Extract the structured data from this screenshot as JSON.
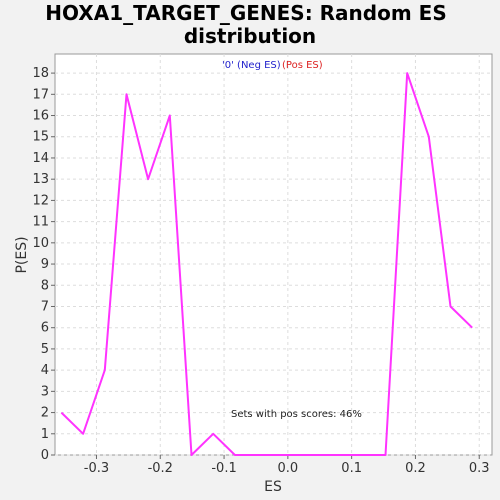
{
  "chart_data": {
    "type": "line",
    "title_line1": "HOXA1_TARGET_GENES: Random ES",
    "title_line2": "distribution",
    "xlabel": "ES",
    "ylabel": "P(ES)",
    "legend": {
      "neg": "'0' (Neg ES)",
      "pos": "(Pos ES)"
    },
    "annotation": "Sets with pos scores: 46%",
    "xlim": [
      -0.365,
      0.32
    ],
    "ylim": [
      0,
      18.9
    ],
    "x_ticks": [
      -0.3,
      -0.2,
      -0.1,
      0.0,
      0.1,
      0.2,
      0.3
    ],
    "x_tick_labels": [
      "-0.3",
      "-0.2",
      "-0.1",
      "0.0",
      "0.1",
      "0.2",
      "0.3"
    ],
    "y_ticks": [
      0,
      1,
      2,
      3,
      4,
      5,
      6,
      7,
      8,
      9,
      10,
      11,
      12,
      13,
      14,
      15,
      16,
      17,
      18
    ],
    "grid": true,
    "series": [
      {
        "color": "#ff33ff",
        "x": [
          -0.355,
          -0.321,
          -0.287,
          -0.253,
          -0.219,
          -0.185,
          -0.151,
          -0.117,
          -0.083,
          0.153,
          0.187,
          0.221,
          0.255,
          0.289
        ],
        "y": [
          2,
          1,
          4,
          17,
          13,
          16,
          0,
          1,
          0,
          0,
          18,
          15,
          7,
          6
        ]
      }
    ]
  }
}
